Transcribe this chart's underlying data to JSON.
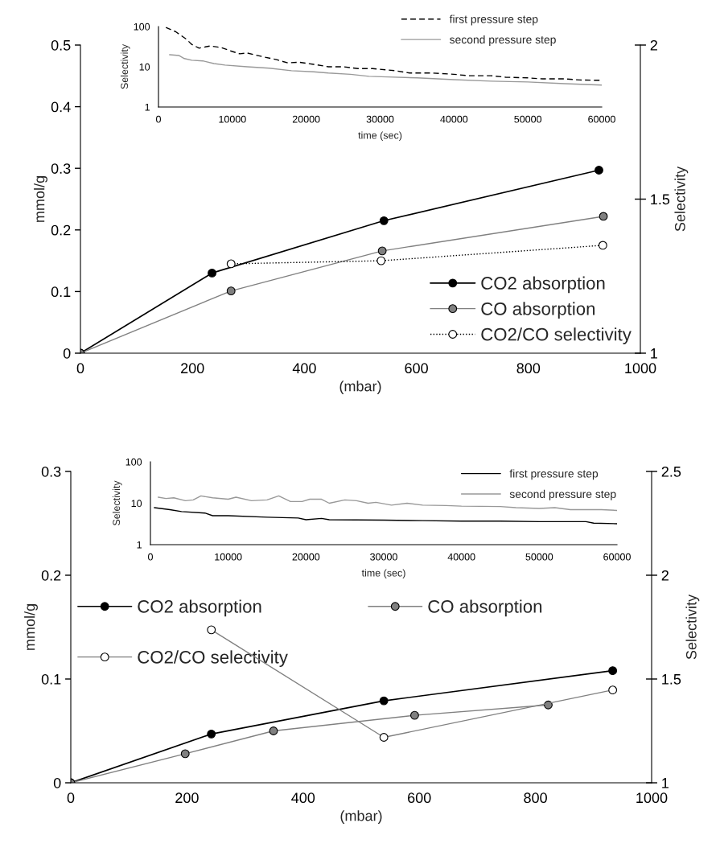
{
  "chart_data": [
    {
      "type": "line",
      "xlabel": "time (sec)",
      "ylabel": "Selectivity",
      "log": "y",
      "xlim": [
        0,
        60000
      ],
      "xticks": [
        0,
        10000,
        20000,
        30000,
        40000,
        50000,
        60000
      ],
      "ylim": [
        1,
        100
      ],
      "yticks": [
        1,
        10,
        100
      ],
      "marker": "none",
      "legend": "top right",
      "grid": false,
      "series": [
        {
          "name": "first pressure step",
          "color": "#000000",
          "line_style": "dashed",
          "x": [
            1000,
            2300,
            3800,
            4500,
            5500,
            7000,
            8500,
            10000,
            11000,
            12000,
            14000,
            16000,
            17500,
            19000,
            21000,
            23000,
            25000,
            27000,
            29000,
            32000,
            34000,
            37000,
            40000,
            42000,
            45000,
            47000,
            50000,
            52000,
            55000,
            57000,
            60000
          ],
          "values": [
            95,
            75,
            48,
            36,
            29,
            33,
            30,
            24,
            21,
            22,
            18,
            15,
            12.5,
            13,
            11.5,
            10,
            10,
            9,
            9,
            8,
            7,
            7,
            6.5,
            6,
            6,
            5.5,
            5.3,
            5,
            5,
            4.7,
            4.6
          ]
        },
        {
          "name": "second pressure step",
          "color": "#999999",
          "line_style": "solid",
          "x": [
            1500,
            2800,
            3500,
            4500,
            6000,
            7500,
            9000,
            12000,
            15000,
            18000,
            21000,
            23000,
            26000,
            28500,
            31000,
            35000,
            40000,
            45000,
            50000,
            55000,
            60000
          ],
          "values": [
            20,
            19,
            16,
            14.5,
            14,
            12,
            11,
            10,
            9.2,
            8,
            7.5,
            7,
            6.5,
            5.8,
            5.6,
            5.3,
            4.8,
            4.4,
            4.2,
            3.8,
            3.5
          ]
        }
      ]
    },
    {
      "type": "line",
      "xlabel": "(mbar)",
      "ylabel": "mmol/g",
      "y2label": "Selectivity",
      "xlim": [
        0,
        1000
      ],
      "xticks": [
        0,
        200,
        400,
        600,
        800,
        1000
      ],
      "ylim": [
        0,
        0.5
      ],
      "yticks": [
        0,
        0.1,
        0.2,
        0.3,
        0.4,
        0.5
      ],
      "y2lim": [
        1,
        2
      ],
      "y2ticks": [
        1,
        1.5,
        2
      ],
      "marker": "circle",
      "legend": "bottom right",
      "grid": false,
      "series": [
        {
          "name": "CO2 absorption",
          "color": "#000000",
          "line_style": "solid",
          "x": [
            0,
            235,
            542,
            926
          ],
          "values": [
            0,
            0.13,
            0.215,
            0.297
          ]
        },
        {
          "name": "CO absorption",
          "color": "#808080",
          "line_style": "solid",
          "x": [
            0,
            269,
            539,
            934
          ],
          "values": [
            0,
            0.101,
            0.166,
            0.222
          ]
        },
        {
          "name": "CO2/CO selectivity",
          "color": "#000000",
          "line_style": "dotted",
          "axis": "y2",
          "x": [
            269,
            537,
            933
          ],
          "values": [
            1.29,
            1.3,
            1.35
          ]
        }
      ]
    },
    {
      "type": "line",
      "xlabel": "time (sec)",
      "ylabel": "Selectivity",
      "log": "y",
      "xlim": [
        0,
        60000
      ],
      "xticks": [
        0,
        10000,
        20000,
        30000,
        40000,
        50000,
        60000
      ],
      "ylim": [
        1,
        100
      ],
      "yticks": [
        1,
        10,
        100
      ],
      "marker": "none",
      "legend": "top right",
      "grid": false,
      "series": [
        {
          "name": "first pressure step",
          "color": "#000000",
          "line_style": "solid",
          "x": [
            500,
            2500,
            4000,
            7000,
            8000,
            10000,
            15000,
            19000,
            20000,
            22000,
            23000,
            30000,
            35000,
            40000,
            45000,
            50000,
            56000,
            57000,
            60000
          ],
          "values": [
            7.8,
            7,
            6.3,
            5.8,
            5,
            5,
            4.6,
            4.4,
            4,
            4.3,
            4,
            3.9,
            3.8,
            3.7,
            3.7,
            3.6,
            3.6,
            3.3,
            3.2
          ]
        },
        {
          "name": "second pressure step",
          "color": "#999999",
          "line_style": "solid",
          "x": [
            1000,
            2000,
            3000,
            4500,
            5500,
            6500,
            8000,
            10000,
            11000,
            13000,
            15000,
            16500,
            18000,
            19500,
            20500,
            22000,
            23000,
            25000,
            26500,
            28000,
            29000,
            31000,
            33000,
            35000,
            38000,
            40000,
            45000,
            47000,
            50000,
            52000,
            54000,
            58000,
            60000
          ],
          "values": [
            14,
            13,
            13.5,
            11.5,
            12,
            15,
            13.5,
            12.5,
            14,
            11.5,
            12,
            15,
            11,
            11,
            12.5,
            12.5,
            10,
            12,
            11.5,
            10,
            10.5,
            9,
            10,
            9,
            8.8,
            8.5,
            8.3,
            7.8,
            7.5,
            7.8,
            7,
            7,
            6.7
          ]
        }
      ]
    },
    {
      "type": "line",
      "xlabel": "(mbar)",
      "ylabel": "mmol/g",
      "y2label": "Selectivity",
      "xlim": [
        0,
        1000
      ],
      "xticks": [
        0,
        200,
        400,
        600,
        800,
        1000
      ],
      "ylim": [
        0,
        0.3
      ],
      "yticks": [
        0,
        0.1,
        0.2,
        0.3
      ],
      "y2lim": [
        1,
        2.5
      ],
      "y2ticks": [
        1,
        1.5,
        2,
        2.5
      ],
      "marker": "circle",
      "legend": "left",
      "grid": false,
      "series": [
        {
          "name": "CO2 absorption",
          "color": "#000000",
          "line_style": "solid",
          "x": [
            0,
            242,
            539,
            933
          ],
          "values": [
            0,
            0.047,
            0.079,
            0.108
          ]
        },
        {
          "name": "CO absorption",
          "color": "#808080",
          "line_style": "solid",
          "x": [
            0,
            197,
            349,
            592,
            822
          ],
          "values": [
            0,
            0.028,
            0.05,
            0.065,
            0.075
          ]
        },
        {
          "name": "CO2/CO selectivity",
          "color": "#808080",
          "line_style": "solid",
          "axis": "y2",
          "x": [
            242,
            539,
            933
          ],
          "values": [
            1.737,
            1.219,
            1.447
          ]
        }
      ]
    }
  ]
}
